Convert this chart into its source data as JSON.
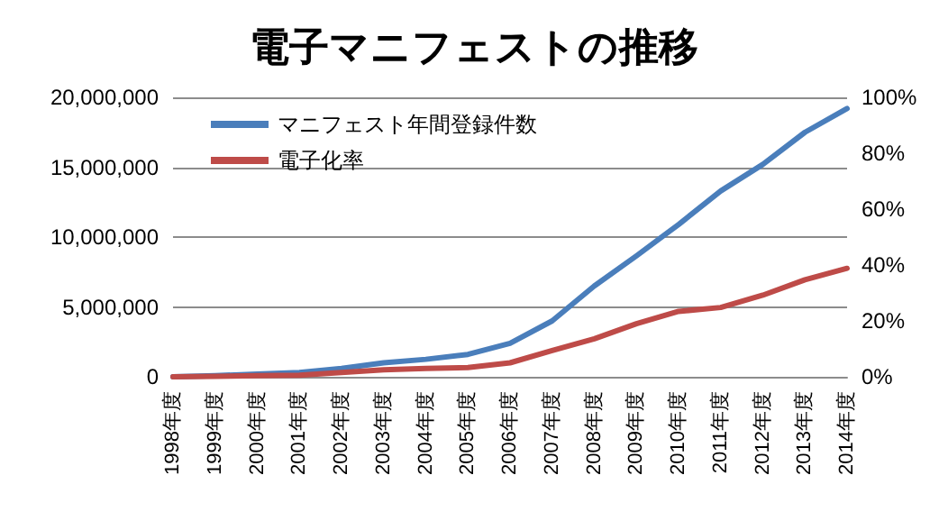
{
  "chart_data": {
    "type": "line",
    "title": "電子マニフェストの推移",
    "categories": [
      "1998年度",
      "1999年度",
      "2000年度",
      "2001年度",
      "2002年度",
      "2003年度",
      "2004年度",
      "2005年度",
      "2006年度",
      "2007年度",
      "2008年度",
      "2009年度",
      "2010年度",
      "2011年度",
      "2012年度",
      "2013年度",
      "2014年度"
    ],
    "series": [
      {
        "name": "マニフェスト年間登録件数",
        "color": "#4a7ebb",
        "values": [
          0,
          80000,
          200000,
          300000,
          600000,
          1000000,
          1250000,
          1600000,
          2400000,
          4000000,
          6500000,
          8650000,
          10900000,
          13300000,
          15200000,
          17500000,
          19200000
        ]
      },
      {
        "name": "電子化率",
        "color": "#be4b48",
        "axis": "y2",
        "values": [
          0,
          0.2,
          0.4,
          0.6,
          1.5,
          2.5,
          3,
          3.3,
          5,
          9.4,
          13.6,
          19,
          23.4,
          24.8,
          29.2,
          34.7,
          38.8
        ]
      }
    ],
    "ylim": [
      0,
      20000000
    ],
    "yticks": [
      {
        "value": 0,
        "label": "0"
      },
      {
        "value": 5000000,
        "label": "5,000,000"
      },
      {
        "value": 10000000,
        "label": "10,000,000"
      },
      {
        "value": 15000000,
        "label": "15,000,000"
      },
      {
        "value": 20000000,
        "label": "20,000,000"
      }
    ],
    "y2lim": [
      0,
      100
    ],
    "y2ticks": [
      {
        "value": 0,
        "label": "0%"
      },
      {
        "value": 20,
        "label": "20%"
      },
      {
        "value": 40,
        "label": "40%"
      },
      {
        "value": 60,
        "label": "60%"
      },
      {
        "value": 80,
        "label": "80%"
      },
      {
        "value": 100,
        "label": "100%"
      }
    ],
    "grid": "y",
    "legend": "top left",
    "marker": "none",
    "line_style": "solid"
  }
}
